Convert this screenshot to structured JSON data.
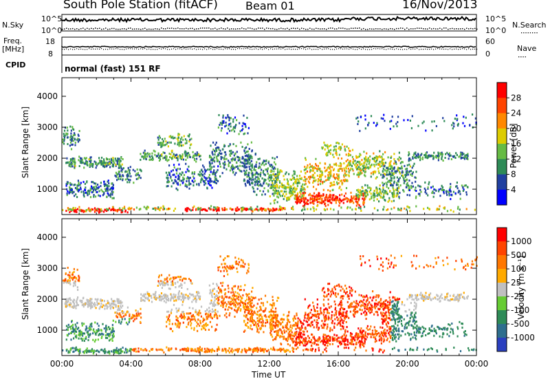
{
  "header": {
    "station": "South Pole Station (fitACF)",
    "beam": "Beam 01",
    "date": "16/Nov/2013"
  },
  "top_panels": {
    "nsky_label": "N.Sky",
    "nsky_ticks": [
      "10^5",
      "10^0"
    ],
    "nsearch_label": "N.Search",
    "nsearch_ticks": [
      "10^5",
      "10^0"
    ],
    "freq_label": "Freq.",
    "freq_unit": "[MHz]",
    "freq_ticks": [
      "18",
      "8"
    ],
    "nave_label": "Nave",
    "nave_ticks": [
      "60",
      "0"
    ],
    "cpid_label": "CPID",
    "cpid_value": "normal (fast) 151 RF"
  },
  "chart_data": [
    {
      "type": "heatmap",
      "name": "power",
      "ylabel": "Slant Range [km]",
      "ylim": [
        180,
        4600
      ],
      "yticks": [
        "4000",
        "3000",
        "2000",
        "1000"
      ],
      "ytick_values": [
        4000,
        3000,
        2000,
        1000
      ],
      "xlim": [
        0,
        24
      ],
      "colorbar_label": "Power [dB]",
      "colorbar_ticks": [
        "28",
        "24",
        "20",
        "16",
        "12",
        "8",
        "4"
      ],
      "colorbar_colors": [
        "#0000ff",
        "#2040a0",
        "#2e8b57",
        "#66bb44",
        "#ddcc00",
        "#ff8800",
        "#ff4400",
        "#ff0000"
      ]
    },
    {
      "type": "heatmap",
      "name": "velocity",
      "ylabel": "Slant Range [km]",
      "ylim": [
        180,
        4600
      ],
      "yticks": [
        "4000",
        "3000",
        "2000",
        "1000"
      ],
      "ytick_values": [
        4000,
        3000,
        2000,
        1000
      ],
      "xlim": [
        0,
        24
      ],
      "xlabel": "Time UT",
      "xticks": [
        "00:00",
        "04:00",
        "08:00",
        "12:00",
        "16:00",
        "20:00",
        "00:00"
      ],
      "colorbar_label": "Velocity [m s⁻¹]",
      "colorbar_ticks": [
        "1000",
        "500",
        "100",
        "25",
        "-25",
        "-100",
        "-500",
        "-1000"
      ],
      "colorbar_colors": [
        "#2a3fbf",
        "#2e6e8e",
        "#2e8b57",
        "#66cc33",
        "#c0c0c0",
        "#ffaa00",
        "#ff7700",
        "#ff4400",
        "#ff0000"
      ]
    }
  ]
}
